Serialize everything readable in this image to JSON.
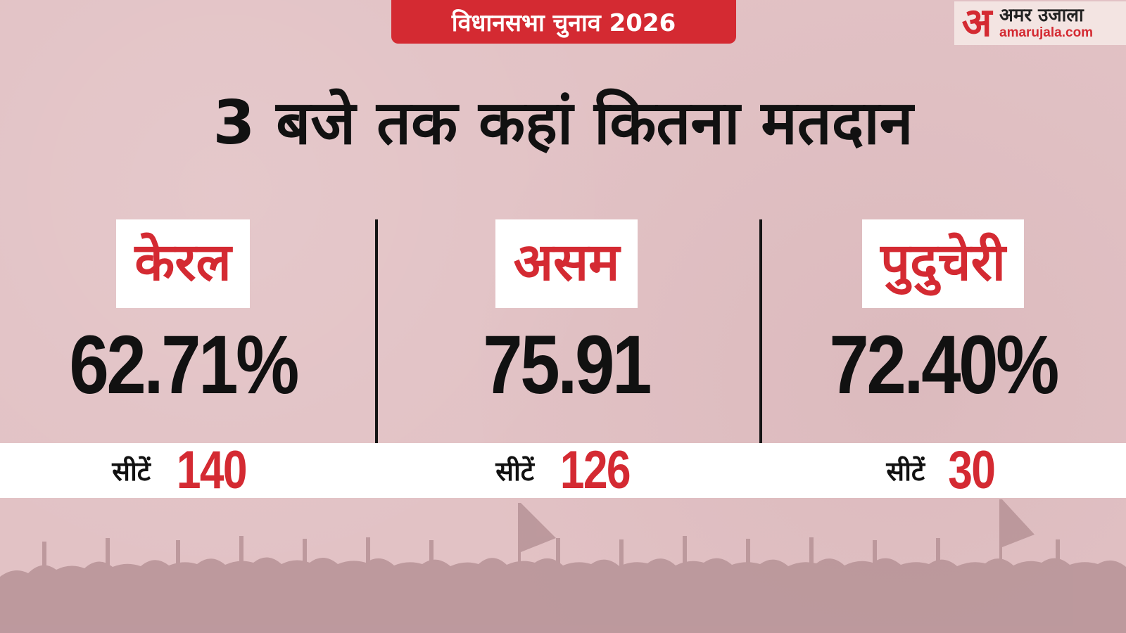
{
  "tag": "विधानसभा चुनाव 2026",
  "logo": {
    "mark": "अ",
    "name": "अमर उजाला",
    "domain": "amarujala.com"
  },
  "headline": "3 बजे तक कहां कितना मतदान",
  "seats_label": "सीटें",
  "states": [
    {
      "name": "केरल",
      "turnout": "62.71%",
      "seats": "140"
    },
    {
      "name": "असम",
      "turnout": "75.91",
      "seats": "126"
    },
    {
      "name": "पुदुचेरी",
      "turnout": "72.40%",
      "seats": "30"
    }
  ],
  "colors": {
    "background": "#e2c2c5",
    "accent": "#d42a32",
    "text": "#111111"
  }
}
